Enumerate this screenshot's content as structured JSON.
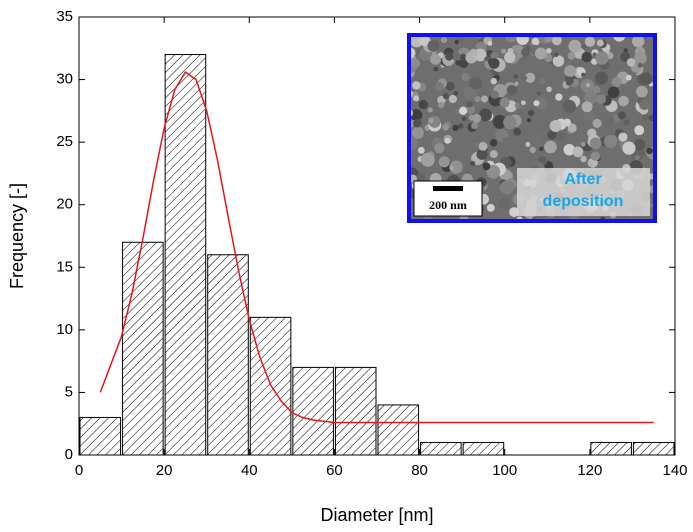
{
  "chart_data": {
    "type": "histogram",
    "x_label": "Diameter [nm]",
    "y_label": "Frequency [-]",
    "bins": [
      0,
      10,
      20,
      30,
      40,
      50,
      60,
      70,
      80,
      90,
      100,
      110,
      120,
      130,
      140
    ],
    "values": [
      3,
      17,
      32,
      16,
      11,
      7,
      7,
      4,
      1,
      1,
      0,
      0,
      1,
      1
    ],
    "bar_pattern": "hatch",
    "xlim": [
      0,
      140
    ],
    "xticks": [
      0,
      20,
      40,
      60,
      80,
      100,
      120,
      140
    ],
    "ylim": [
      0,
      35
    ],
    "yticks": [
      0,
      5,
      10,
      15,
      20,
      25,
      30,
      35
    ],
    "fit": {
      "type": "line",
      "color": "#e8141c",
      "x": [
        5,
        10,
        12.5,
        15,
        17.5,
        20,
        22.5,
        25,
        27.5,
        30,
        32.5,
        35,
        37.5,
        40,
        42.5,
        45,
        47.5,
        50,
        52.5,
        55,
        60,
        135
      ],
      "values": [
        5.0,
        9.5,
        13.0,
        17.3,
        21.9,
        26.1,
        29.2,
        30.6,
        30.0,
        27.5,
        23.6,
        19.1,
        14.7,
        10.8,
        7.8,
        5.6,
        4.3,
        3.4,
        3.0,
        2.8,
        2.6,
        2.6
      ]
    },
    "inset": {
      "label_lines": [
        "After",
        "deposition"
      ],
      "scale_bar": "200 nm",
      "border_color": "#1010f0",
      "label_color": "#1aa6e6"
    }
  }
}
